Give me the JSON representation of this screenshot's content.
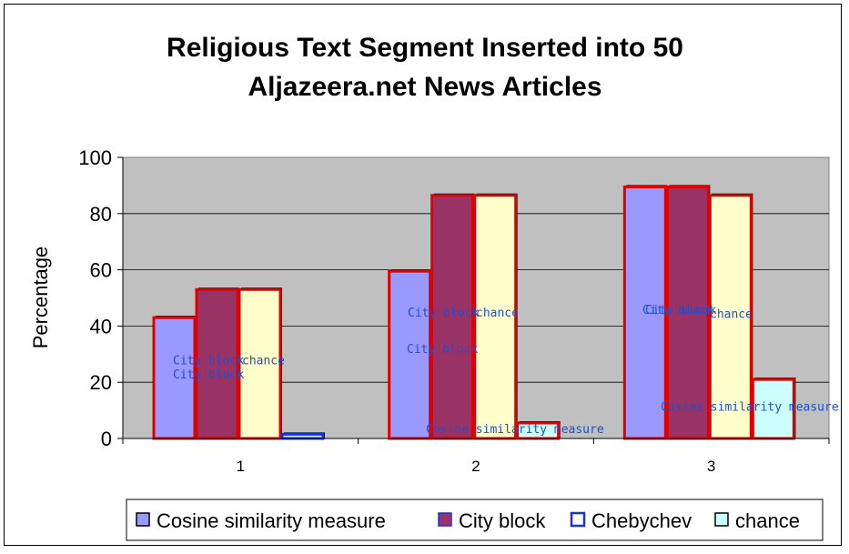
{
  "chart_data": {
    "type": "bar",
    "title_lines": [
      "Religious Text Segment Inserted into 50",
      "Aljazeera.net News Articles"
    ],
    "xlabel": "",
    "ylabel": "Percentage",
    "ylim": [
      0,
      100
    ],
    "yticks": [
      "0",
      "20",
      "40",
      "60",
      "80",
      "100"
    ],
    "categories": [
      "1",
      "2",
      "3"
    ],
    "grid": true,
    "legend_position": "bottom",
    "series": [
      {
        "name": "Cosine similarity measure",
        "color": "#9999ff",
        "values": [
          43,
          59.5,
          89.5
        ]
      },
      {
        "name": "City block",
        "color": "#993366",
        "values": [
          53,
          86.5,
          89.5
        ]
      },
      {
        "name": "Chebychev",
        "color": "#ffffcc",
        "values": [
          53,
          86.5,
          86.5
        ]
      },
      {
        "name": "chance",
        "color": "#ccffff",
        "values": [
          1.5,
          5.5,
          21
        ]
      }
    ],
    "legend_swatch_colors": [
      "#9999ff",
      "#993366",
      "#ffffff",
      "#ccffff"
    ],
    "annotations": [
      {
        "text": "City block",
        "category": 0,
        "value": 28
      },
      {
        "text": "City block",
        "category": 0,
        "value": 23
      },
      {
        "text": "chance",
        "category": 0,
        "value": 28
      },
      {
        "text": "City block",
        "category": 1,
        "value": 45
      },
      {
        "text": "chance",
        "category": 1,
        "value": 45
      },
      {
        "text": "City block",
        "category": 1,
        "value": 32
      },
      {
        "text": "Cosine similarity measure",
        "category": 1,
        "value": 3.5
      },
      {
        "text": "City block",
        "category": 2,
        "value": 46
      },
      {
        "text": "City block",
        "category": 2,
        "value": 46
      },
      {
        "text": "chance",
        "category": 2,
        "value": 44.5
      },
      {
        "text": "Cosine similarity measure",
        "category": 2,
        "value": 11.5
      }
    ]
  }
}
